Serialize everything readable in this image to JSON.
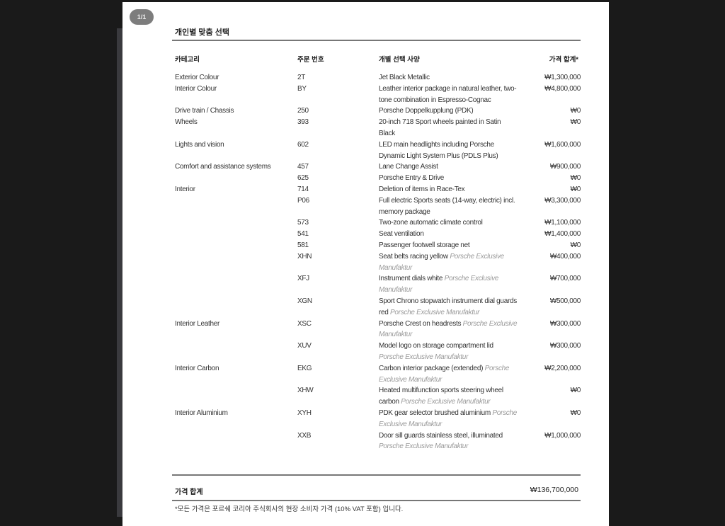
{
  "viewer": {
    "page_indicator": "1/1"
  },
  "doc": {
    "title": "개인별 맞춤 선택",
    "headers": {
      "category": "카테고리",
      "code": "주문 번호",
      "option": "개별 선택 사양",
      "price": "가격 합계*"
    },
    "rows": [
      {
        "category": "Exterior Colour",
        "code": "2T",
        "desc": "Jet Black Metallic",
        "exclusive": "",
        "price": "₩1,300,000"
      },
      {
        "category": "Interior Colour",
        "code": "BY",
        "desc": "Leather interior package in natural leather, two-tone combination in Espresso-Cognac",
        "exclusive": "",
        "price": "₩4,800,000"
      },
      {
        "category": "Drive train / Chassis",
        "code": "250",
        "desc": "Porsche Doppelkupplung (PDK)",
        "exclusive": "",
        "price": "₩0"
      },
      {
        "category": "Wheels",
        "code": "393",
        "desc": "20-inch 718 Sport wheels painted in Satin Black",
        "exclusive": "",
        "price": "₩0"
      },
      {
        "category": "Lights and vision",
        "code": "602",
        "desc": "LED main headlights including Porsche Dynamic Light System Plus (PDLS Plus)",
        "exclusive": "",
        "price": "₩1,600,000"
      },
      {
        "category": "Comfort and assistance systems",
        "code": "457",
        "desc": "Lane Change Assist",
        "exclusive": "",
        "price": "₩900,000"
      },
      {
        "category": "",
        "code": "625",
        "desc": "Porsche Entry & Drive",
        "exclusive": "",
        "price": "₩0"
      },
      {
        "category": "Interior",
        "code": "714",
        "desc": "Deletion of items in Race-Tex",
        "exclusive": "",
        "price": "₩0"
      },
      {
        "category": "",
        "code": "P06",
        "desc": "Full electric Sports seats (14-way, electric) incl. memory package",
        "exclusive": "",
        "price": "₩3,300,000"
      },
      {
        "category": "",
        "code": "573",
        "desc": "Two-zone automatic climate control",
        "exclusive": "",
        "price": "₩1,100,000"
      },
      {
        "category": "",
        "code": "541",
        "desc": "Seat ventilation",
        "exclusive": "",
        "price": "₩1,400,000"
      },
      {
        "category": "",
        "code": "581",
        "desc": "Passenger footwell storage net",
        "exclusive": "",
        "price": "₩0"
      },
      {
        "category": "",
        "code": "XHN",
        "desc": "Seat belts racing yellow",
        "exclusive": "Porsche Exclusive Manufaktur",
        "price": "₩400,000"
      },
      {
        "category": "",
        "code": "XFJ",
        "desc": "Instrument dials white",
        "exclusive": "Porsche Exclusive Manufaktur",
        "price": "₩700,000"
      },
      {
        "category": "",
        "code": "XGN",
        "desc": "Sport Chrono stopwatch instrument dial guards red",
        "exclusive": "Porsche Exclusive Manufaktur",
        "price": "₩500,000"
      },
      {
        "category": "Interior Leather",
        "code": "XSC",
        "desc": "Porsche Crest on headrests",
        "exclusive": "Porsche Exclusive Manufaktur",
        "price": "₩300,000"
      },
      {
        "category": "",
        "code": "XUV",
        "desc": "Model logo on storage compartment lid",
        "exclusive": "Porsche Exclusive Manufaktur",
        "price": "₩300,000"
      },
      {
        "category": "Interior Carbon",
        "code": "EKG",
        "desc": "Carbon interior package (extended)",
        "exclusive": "Porsche Exclusive Manufaktur",
        "price": "₩2,200,000"
      },
      {
        "category": "",
        "code": "XHW",
        "desc": "Heated multifunction sports steering wheel carbon",
        "exclusive": "Porsche Exclusive Manufaktur",
        "price": "₩0"
      },
      {
        "category": "Interior Aluminium",
        "code": "XYH",
        "desc": "PDK gear selector brushed aluminium",
        "exclusive": "Porsche Exclusive Manufaktur",
        "price": "₩0"
      },
      {
        "category": "",
        "code": "XXB",
        "desc": "Door sill guards stainless steel, illuminated",
        "exclusive": "Porsche Exclusive Manufaktur",
        "price": "₩1,000,000"
      }
    ],
    "total_label": "가격 합계",
    "total_value": "₩136,700,000",
    "footnote": "*모든 가격은 포르쉐 코리아 주식회사의 현장 소비자 가격 (10% VAT 포함) 입니다."
  }
}
